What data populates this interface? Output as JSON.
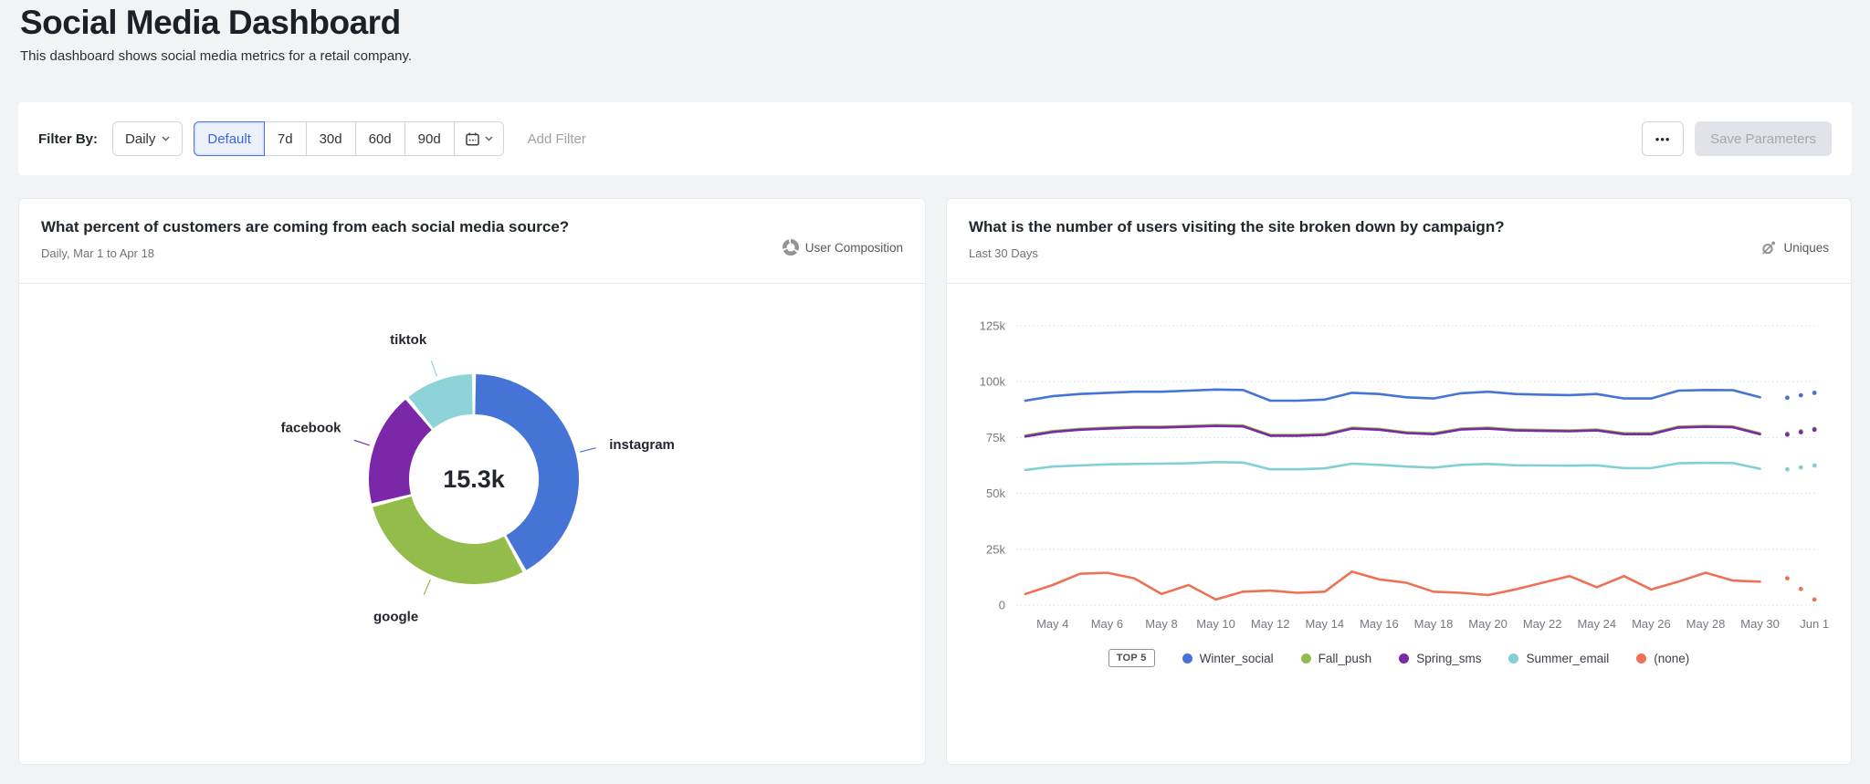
{
  "page": {
    "title": "Social Media Dashboard",
    "subtitle": "This dashboard shows social media metrics for a retail company."
  },
  "filter_bar": {
    "label": "Filter By:",
    "granularity_value": "Daily",
    "range_options": [
      "Default",
      "7d",
      "30d",
      "60d",
      "90d"
    ],
    "selected_range": "Default",
    "add_filter_label": "Add Filter",
    "more_label": "•••",
    "save_button_label": "Save Parameters"
  },
  "cards": {
    "donut": {
      "title": "What percent of customers are coming from each social media source?",
      "subtitle": "Daily, Mar 1 to Apr 18",
      "metric_label": "User Composition"
    },
    "lines": {
      "title": "What is the number of users visiting the site broken down by campaign?",
      "subtitle": "Last 30 Days",
      "metric_label": "Uniques",
      "legend_badge": "TOP 5"
    }
  },
  "chart_data": [
    {
      "type": "pie",
      "subtype": "donut",
      "title": "What percent of customers are coming from each social media source?",
      "center_total": "15.3k",
      "labels": [
        "instagram",
        "google",
        "facebook",
        "tiktok"
      ],
      "values_percent": [
        42,
        29,
        18,
        11
      ],
      "colors": [
        "#4673d6",
        "#94bc4a",
        "#7b28a8",
        "#8ed3d8"
      ],
      "legend_position": "callout-labels"
    },
    {
      "type": "line",
      "title": "What is the number of users visiting the site broken down by campaign?",
      "ylabel": "unique users",
      "values_in": "thousands",
      "ylim": [
        0,
        125000
      ],
      "y_tick_labels": [
        "0",
        "25k",
        "50k",
        "75k",
        "100k",
        "125k"
      ],
      "x_tick_labels": [
        "May 4",
        "May 6",
        "May 8",
        "May 10",
        "May 12",
        "May 14",
        "May 16",
        "May 18",
        "May 20",
        "May 22",
        "May 24",
        "May 26",
        "May 28",
        "May 30",
        "Jun 1"
      ],
      "grid": "horizontal-dotted",
      "legend_position": "bottom",
      "projection_dots": 3,
      "series": [
        {
          "name": "Winter_social",
          "color": "#4673d6",
          "values": [
            91.5,
            93.5,
            94.5,
            95.0,
            95.5,
            95.5,
            96.0,
            96.5,
            96.3,
            91.5,
            91.5,
            92.0,
            95.0,
            94.5,
            93.0,
            92.5,
            94.8,
            95.5,
            94.5,
            94.2,
            94.0,
            94.5,
            92.5,
            92.5,
            96.0,
            96.3,
            96.2,
            93.0,
            92.8,
            95.0
          ]
        },
        {
          "name": "Fall_push",
          "color": "#94bc4a",
          "values": [
            75.9,
            77.9,
            78.9,
            79.4,
            79.9,
            79.9,
            80.2,
            80.6,
            80.4,
            76.2,
            76.2,
            76.6,
            79.4,
            78.9,
            77.4,
            76.9,
            79.0,
            79.4,
            78.6,
            78.4,
            78.2,
            78.6,
            76.9,
            76.9,
            79.9,
            80.2,
            80.0,
            76.9,
            76.7,
            78.9
          ]
        },
        {
          "name": "Spring_sms",
          "color": "#7b28a8",
          "values": [
            75.5,
            77.5,
            78.5,
            79.0,
            79.5,
            79.5,
            79.8,
            80.2,
            80.0,
            75.8,
            75.8,
            76.2,
            79.0,
            78.5,
            77.0,
            76.5,
            78.6,
            79.0,
            78.2,
            78.0,
            77.8,
            78.2,
            76.5,
            76.5,
            79.5,
            79.8,
            79.6,
            76.5,
            76.3,
            78.5
          ]
        },
        {
          "name": "Summer_email",
          "color": "#82d0d6",
          "values": [
            60.5,
            62.0,
            62.5,
            63.0,
            63.2,
            63.3,
            63.5,
            64.0,
            63.8,
            60.8,
            60.8,
            61.2,
            63.3,
            62.8,
            62.0,
            61.5,
            62.8,
            63.2,
            62.6,
            62.5,
            62.4,
            62.6,
            61.3,
            61.3,
            63.5,
            63.7,
            63.6,
            61.0,
            60.8,
            62.5
          ]
        },
        {
          "name": "(none)",
          "color": "#ef7155",
          "values": [
            5,
            9,
            14,
            14.5,
            12,
            5,
            9,
            2.5,
            6,
            6.5,
            5.5,
            6,
            15,
            11.5,
            10,
            6,
            5.5,
            4.5,
            7,
            10,
            13,
            8,
            13,
            7,
            10.5,
            14.5,
            11,
            10.5,
            12,
            2.5
          ]
        }
      ]
    }
  ]
}
